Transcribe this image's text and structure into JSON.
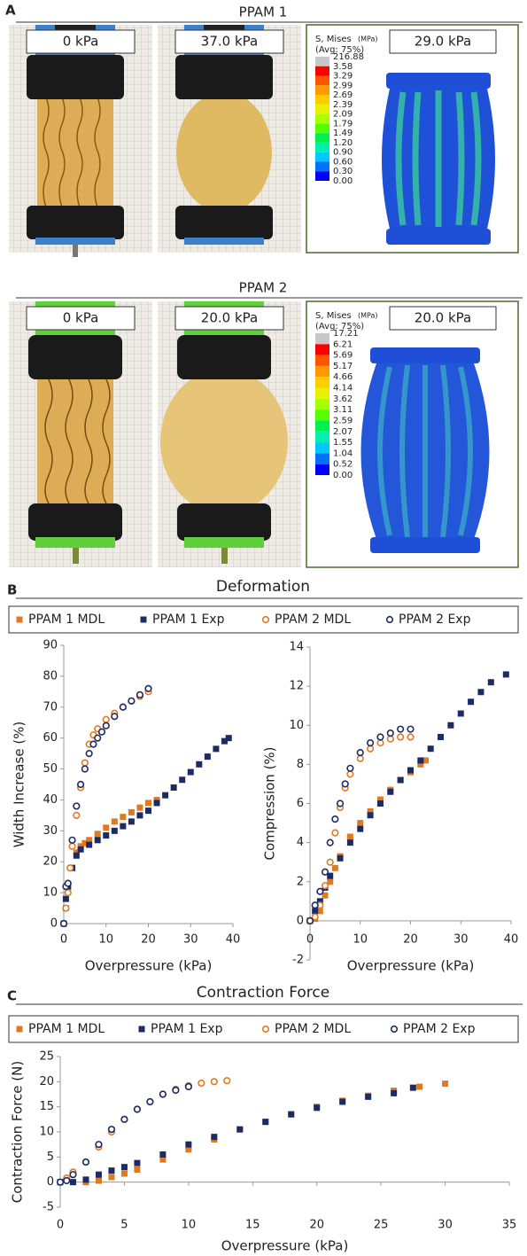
{
  "panel_a": {
    "label": "A",
    "rows": [
      {
        "title": "PPAM 1",
        "photo_labels": [
          "0 kPa",
          "37.0 kPa"
        ],
        "fea_label": "29.0 kPa",
        "legend_title": "S, Mises",
        "legend_unit": "(MPa)",
        "legend_avg": "(Avg: 75%)",
        "legend_values": [
          "216.88",
          "3.58",
          "3.29",
          "2.99",
          "2.69",
          "2.39",
          "2.09",
          "1.79",
          "1.49",
          "1.20",
          "0.90",
          "0.60",
          "0.30",
          "0.00"
        ]
      },
      {
        "title": "PPAM 2",
        "photo_labels": [
          "0 kPa",
          "20.0 kPa"
        ],
        "fea_label": "20.0 kPa",
        "legend_title": "S, Mises",
        "legend_unit": "(MPa)",
        "legend_avg": "(Avg: 75%)",
        "legend_values": [
          "17.21",
          "6.21",
          "5.69",
          "5.17",
          "4.66",
          "4.14",
          "3.62",
          "3.11",
          "2.59",
          "2.07",
          "1.55",
          "1.04",
          "0.52",
          "0.00"
        ]
      }
    ]
  },
  "chart_data": [
    {
      "type": "scatter",
      "panel": "B",
      "title": "Deformation",
      "x_label": "Overpressure (kPa)",
      "y_label": "Width Increase (%)",
      "xlim": [
        0,
        40
      ],
      "xticks": [
        0,
        10,
        20,
        30,
        40
      ],
      "ylim": [
        0,
        90
      ],
      "yticks": [
        0,
        10,
        20,
        30,
        40,
        50,
        60,
        70,
        80,
        90
      ],
      "series": [
        {
          "name": "PPAM 1 MDL",
          "color": "#e07a22",
          "marker": "square",
          "filled": true,
          "x": [
            0,
            0.5,
            1,
            2,
            3,
            4,
            5,
            6,
            8,
            10,
            12,
            14,
            16,
            18,
            20,
            22
          ],
          "values": [
            0,
            5,
            12,
            18,
            23,
            25,
            26,
            27,
            29,
            31,
            33,
            34.5,
            36,
            37.5,
            39,
            40
          ]
        },
        {
          "name": "PPAM 1 Exp",
          "color": "#1c2a66",
          "marker": "square",
          "filled": true,
          "x": [
            0,
            0.5,
            1,
            2,
            3,
            4,
            6,
            8,
            10,
            12,
            14,
            16,
            18,
            20,
            22,
            24,
            26,
            28,
            30,
            32,
            34,
            36,
            38,
            39
          ],
          "values": [
            0,
            8,
            12,
            18,
            22,
            24,
            25.5,
            27,
            28.5,
            30,
            31.5,
            33,
            35,
            36.5,
            39,
            41.5,
            44,
            46.5,
            49,
            51.5,
            54,
            56.5,
            59,
            60
          ]
        },
        {
          "name": "PPAM 2 MDL",
          "color": "#e07a22",
          "marker": "circle",
          "filled": false,
          "x": [
            0,
            0.5,
            1,
            1.5,
            2,
            3,
            4,
            5,
            6,
            7,
            8,
            10,
            12,
            14,
            16,
            18,
            20
          ],
          "values": [
            0,
            5,
            10,
            18,
            25,
            35,
            44,
            52,
            58,
            61,
            63,
            66,
            68,
            70,
            72,
            73.5,
            75
          ]
        },
        {
          "name": "PPAM 2 Exp",
          "color": "#1c2a66",
          "marker": "circle",
          "filled": false,
          "x": [
            0,
            0.5,
            1,
            2,
            3,
            4,
            5,
            6,
            7,
            8,
            9,
            10,
            12,
            14,
            16,
            18,
            20
          ],
          "values": [
            0,
            12,
            13,
            27,
            38,
            45,
            50,
            55,
            58,
            60,
            62,
            64,
            67,
            70,
            72,
            74,
            76
          ]
        }
      ]
    },
    {
      "type": "scatter",
      "x_label": "Overpressure (kPa)",
      "y_label": "Compression (%)",
      "xlim": [
        0,
        40
      ],
      "xticks": [
        0,
        10,
        20,
        30,
        40
      ],
      "ylim": [
        -2,
        14
      ],
      "yticks": [
        -2,
        0,
        2,
        4,
        6,
        8,
        10,
        12,
        14
      ],
      "series": [
        {
          "color": "#e07a22",
          "marker": "square",
          "filled": true,
          "x": [
            0,
            1,
            2,
            3,
            4,
            5,
            6,
            8,
            10,
            12,
            14,
            16,
            18,
            20,
            22,
            23
          ],
          "values": [
            0,
            0.1,
            0.5,
            1.3,
            2,
            2.7,
            3.3,
            4.3,
            5,
            5.6,
            6.2,
            6.7,
            7.2,
            7.6,
            8,
            8.2
          ]
        },
        {
          "color": "#1c2a66",
          "marker": "square",
          "filled": true,
          "x": [
            0,
            1,
            2,
            3,
            4,
            6,
            8,
            10,
            12,
            14,
            16,
            18,
            20,
            22,
            24,
            26,
            28,
            30,
            32,
            34,
            36,
            39
          ],
          "values": [
            0,
            0.5,
            1,
            1.7,
            2.3,
            3.2,
            4,
            4.7,
            5.4,
            6,
            6.6,
            7.2,
            7.7,
            8.2,
            8.8,
            9.4,
            10,
            10.6,
            11.2,
            11.7,
            12.2,
            12.6
          ]
        },
        {
          "color": "#e07a22",
          "marker": "circle",
          "filled": false,
          "x": [
            0,
            1,
            2,
            3,
            4,
            5,
            6,
            7,
            8,
            10,
            12,
            14,
            16,
            18,
            20
          ],
          "values": [
            0,
            0.2,
            0.8,
            1.8,
            3,
            4.5,
            5.8,
            6.8,
            7.5,
            8.3,
            8.8,
            9.1,
            9.3,
            9.4,
            9.4
          ]
        },
        {
          "color": "#1c2a66",
          "marker": "circle",
          "filled": false,
          "x": [
            0,
            1,
            2,
            3,
            4,
            5,
            6,
            7,
            8,
            10,
            12,
            14,
            16,
            18,
            20
          ],
          "values": [
            0,
            0.8,
            1.5,
            2.5,
            4,
            5.2,
            6,
            7,
            7.8,
            8.6,
            9.1,
            9.4,
            9.6,
            9.8,
            9.8
          ]
        }
      ]
    },
    {
      "type": "scatter",
      "panel": "C",
      "title": "Contraction Force",
      "x_label": "Overpressure (kPa)",
      "y_label": "Contraction Force (N)",
      "xlim": [
        0,
        35
      ],
      "xticks": [
        0,
        5,
        10,
        15,
        20,
        25,
        30,
        35
      ],
      "ylim": [
        -5,
        25
      ],
      "yticks": [
        -5,
        0,
        5,
        10,
        15,
        20,
        25
      ],
      "series": [
        {
          "name": "PPAM 1 MDL",
          "color": "#e07a22",
          "marker": "square",
          "filled": true,
          "x": [
            0,
            2,
            3,
            4,
            5,
            6,
            8,
            10,
            12,
            14,
            16,
            18,
            20,
            22,
            24,
            26,
            28,
            30
          ],
          "values": [
            0,
            0,
            0.3,
            1,
            1.7,
            2.5,
            4.5,
            6.5,
            8.5,
            10.5,
            12,
            13.5,
            15,
            16.2,
            17.2,
            18.2,
            19,
            19.6
          ]
        },
        {
          "name": "PPAM 1 Exp",
          "color": "#1c2a66",
          "marker": "square",
          "filled": true,
          "x": [
            0,
            1,
            2,
            3,
            4,
            5,
            6,
            8,
            10,
            12,
            14,
            16,
            18,
            20,
            22,
            24,
            26,
            27.5
          ],
          "values": [
            0,
            0,
            0.5,
            1.5,
            2.3,
            3,
            3.8,
            5.5,
            7.5,
            9,
            10.5,
            12,
            13.5,
            14.8,
            16,
            17,
            17.7,
            18.8
          ]
        },
        {
          "name": "PPAM 2 MDL",
          "color": "#e07a22",
          "marker": "circle",
          "filled": false,
          "x": [
            0,
            0.5,
            1,
            2,
            3,
            4,
            5,
            6,
            7,
            8,
            9,
            10,
            11,
            12,
            13
          ],
          "values": [
            0,
            0.8,
            2,
            4,
            7,
            10,
            12.5,
            14.5,
            16,
            17.5,
            18.5,
            19.2,
            19.7,
            20,
            20.2
          ]
        },
        {
          "name": "PPAM 2 Exp",
          "color": "#1c2a66",
          "marker": "circle",
          "filled": false,
          "x": [
            0,
            0.5,
            1,
            2,
            3,
            4,
            5,
            6,
            7,
            8,
            9,
            10
          ],
          "values": [
            0,
            0.3,
            1.5,
            4,
            7.5,
            10.5,
            12.5,
            14.5,
            16,
            17.5,
            18.3,
            19
          ]
        }
      ]
    }
  ]
}
